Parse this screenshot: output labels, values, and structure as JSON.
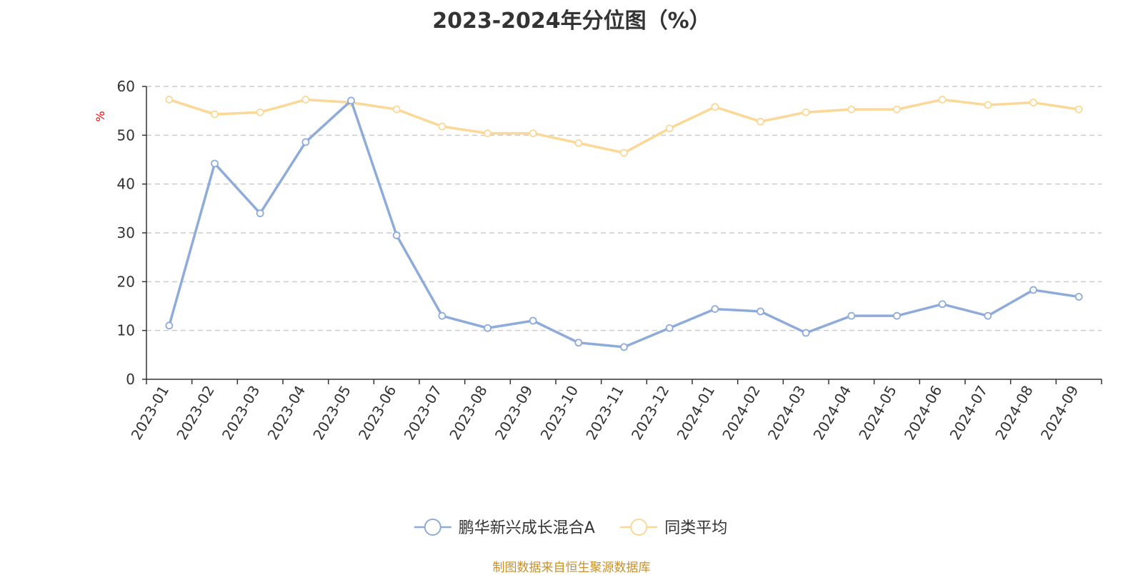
{
  "chart_data": {
    "type": "line",
    "title": "2023-2024年分位图（%）",
    "ylabel": "%",
    "ylim": [
      0,
      60
    ],
    "yticks": [
      0,
      10,
      20,
      30,
      40,
      50,
      60
    ],
    "grid": true,
    "legend_position": "bottom-center",
    "categories": [
      "2023-01",
      "2023-02",
      "2023-03",
      "2023-04",
      "2023-05",
      "2023-06",
      "2023-07",
      "2023-08",
      "2023-09",
      "2023-10",
      "2023-11",
      "2023-12",
      "2024-01",
      "2024-02",
      "2024-03",
      "2024-04",
      "2024-05",
      "2024-06",
      "2024-07",
      "2024-08",
      "2024-09"
    ],
    "series": [
      {
        "name": "鹏华新兴成长混合A",
        "color": "#8eabd9",
        "values": [
          11.0,
          44.2,
          34.0,
          48.6,
          57.1,
          29.5,
          13.0,
          10.5,
          12.0,
          7.5,
          6.6,
          10.5,
          14.4,
          13.9,
          9.5,
          13.0,
          13.0,
          15.4,
          13.0,
          18.3,
          16.9
        ]
      },
      {
        "name": "同类平均",
        "color": "#fbd896",
        "values": [
          57.3,
          54.3,
          54.7,
          57.3,
          56.7,
          55.3,
          51.8,
          50.4,
          50.4,
          48.4,
          46.4,
          51.4,
          55.8,
          52.8,
          54.7,
          55.3,
          55.3,
          57.3,
          56.2,
          56.7,
          55.3
        ]
      }
    ]
  },
  "source_note": "制图数据来自恒生聚源数据库"
}
